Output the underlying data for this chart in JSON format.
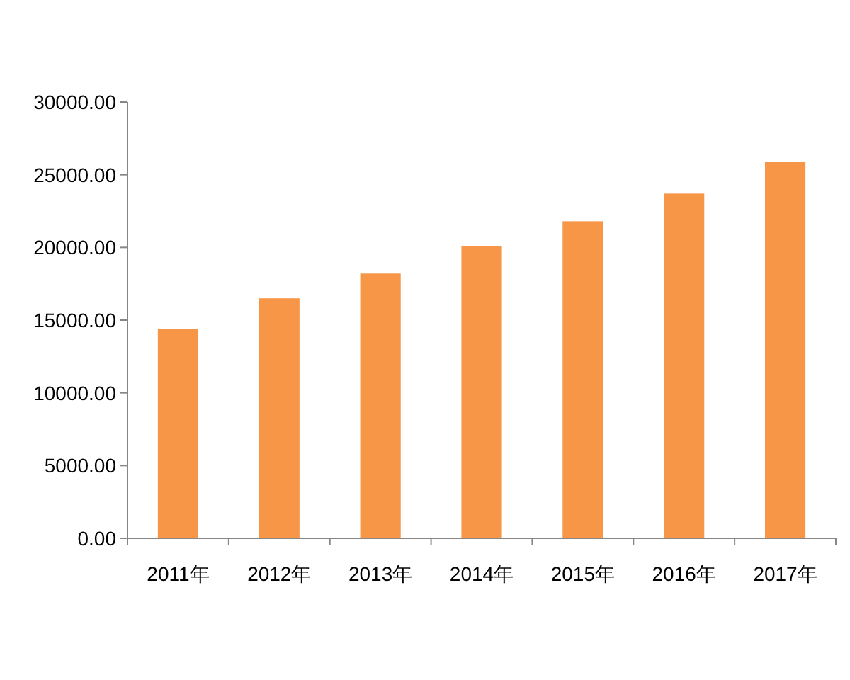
{
  "chart_data": {
    "type": "bar",
    "categories": [
      "2011年",
      "2012年",
      "2013年",
      "2014年",
      "2015年",
      "2016年",
      "2017年"
    ],
    "values": [
      14400,
      16500,
      18200,
      20100,
      21800,
      23700,
      25900
    ],
    "color": "#f79646",
    "ylim": [
      0,
      30000
    ],
    "yticks": [
      {
        "value": 0,
        "label": "0.00"
      },
      {
        "value": 5000,
        "label": "5000.00"
      },
      {
        "value": 10000,
        "label": "10000.00"
      },
      {
        "value": 15000,
        "label": "15000.00"
      },
      {
        "value": 20000,
        "label": "20000.00"
      },
      {
        "value": 25000,
        "label": "25000.00"
      },
      {
        "value": 30000,
        "label": "30000.00"
      }
    ],
    "grid": false
  }
}
